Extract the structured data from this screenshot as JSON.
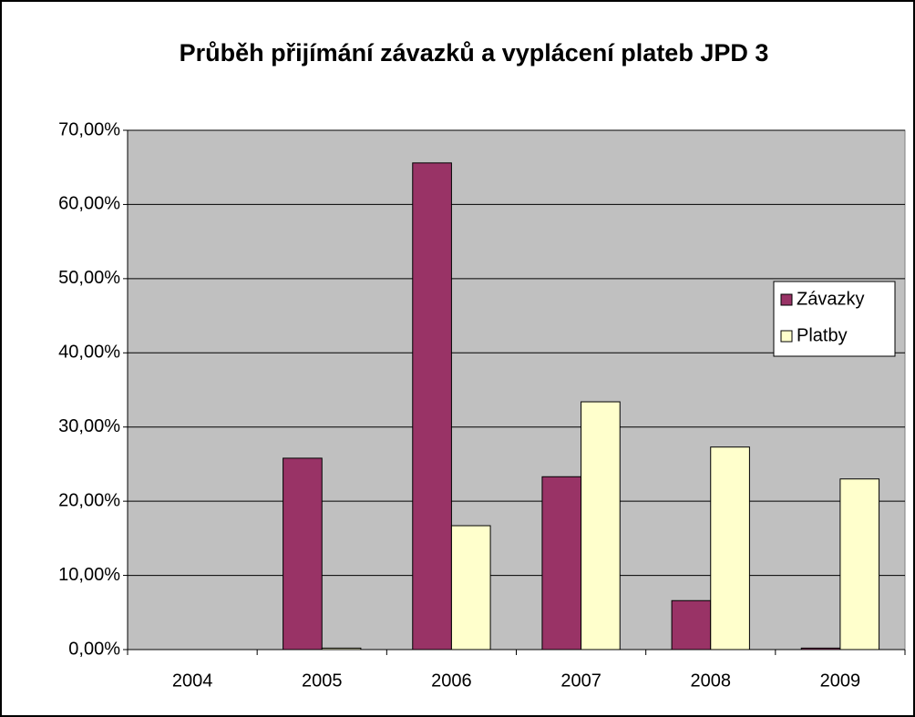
{
  "chart_data": {
    "type": "bar",
    "title": "Průběh přijímání závazků a vyplácení plateb JPD 3",
    "categories": [
      "2004",
      "2005",
      "2006",
      "2007",
      "2008",
      "2009"
    ],
    "series": [
      {
        "name": "Závazky",
        "color": "#993366",
        "values": [
          0,
          25.8,
          65.6,
          23.3,
          6.6,
          0.2
        ]
      },
      {
        "name": "Platby",
        "color": "#ffffcc",
        "values": [
          0,
          0.2,
          16.7,
          33.4,
          27.3,
          23.0
        ]
      }
    ],
    "ylim": [
      0,
      70
    ],
    "yticks": [
      {
        "value": 0,
        "label": "0,00%"
      },
      {
        "value": 10,
        "label": "10,00%"
      },
      {
        "value": 20,
        "label": "20,00%"
      },
      {
        "value": 30,
        "label": "30,00%"
      },
      {
        "value": 40,
        "label": "40,00%"
      },
      {
        "value": 50,
        "label": "50,00%"
      },
      {
        "value": 60,
        "label": "60,00%"
      },
      {
        "value": 70,
        "label": "70,00%"
      }
    ],
    "grid": true,
    "legend": "right"
  }
}
